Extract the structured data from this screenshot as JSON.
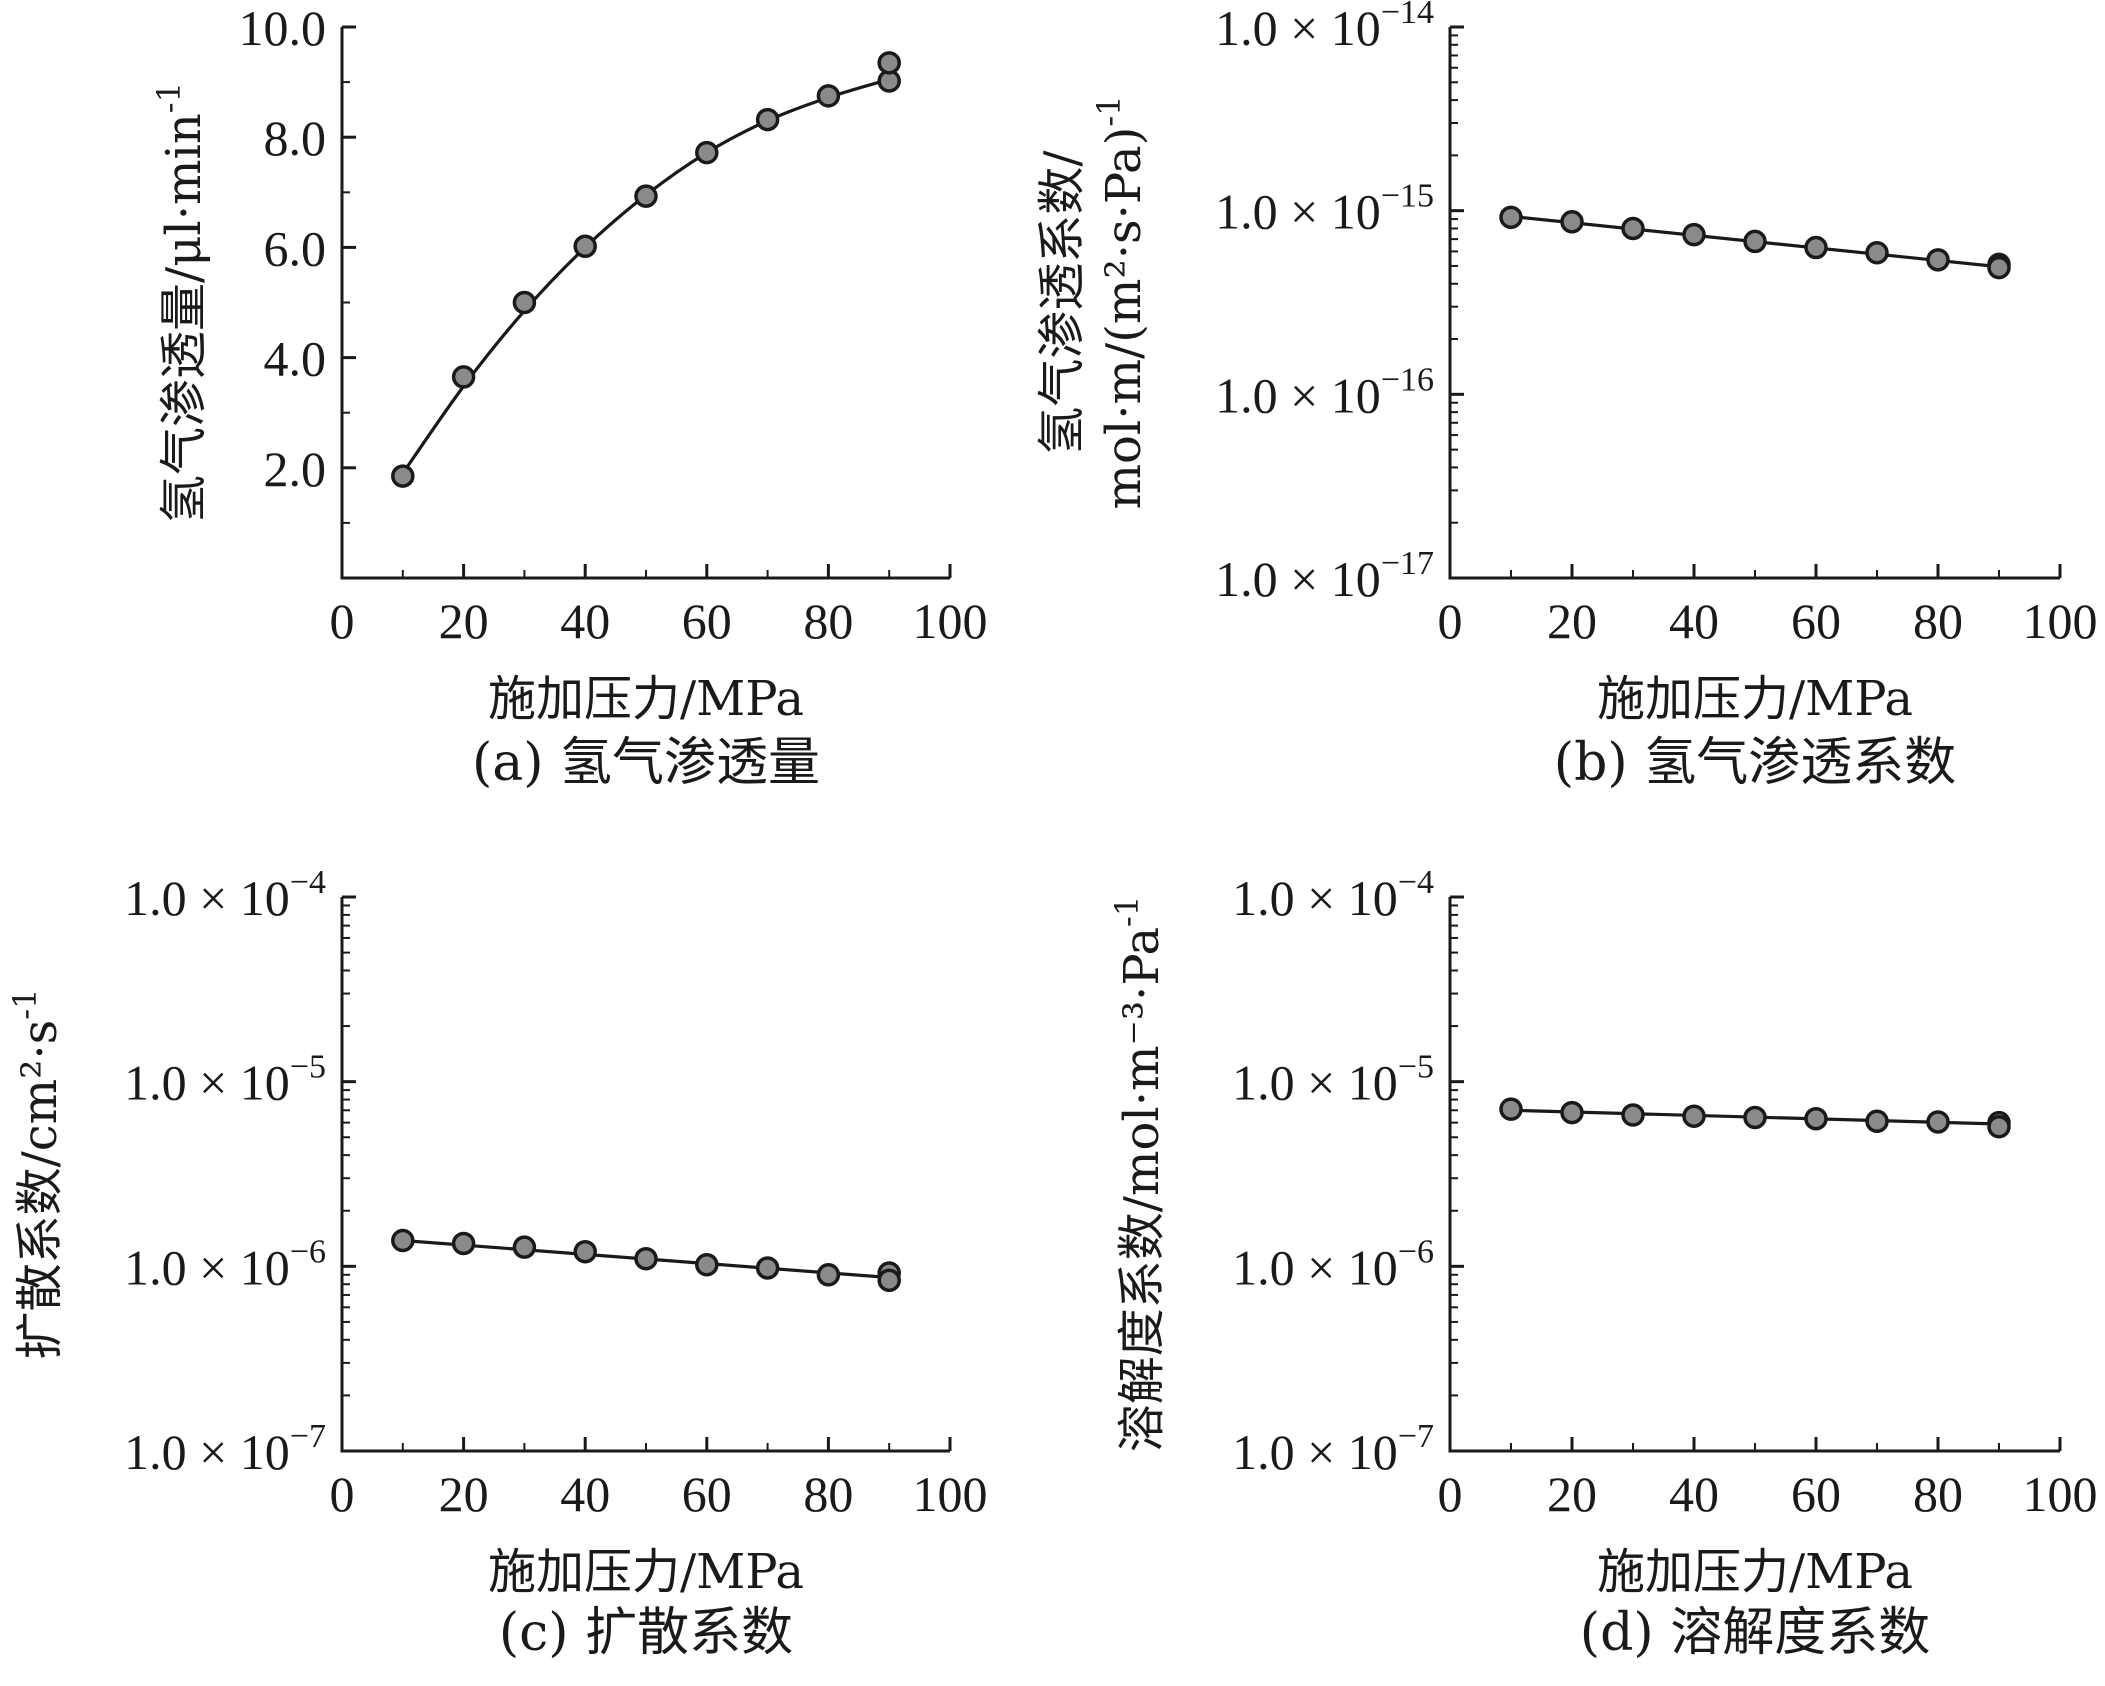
{
  "colors": {
    "marker_fill": "#8a8a8a",
    "line": "#1a1a1a",
    "background": "#ffffff"
  },
  "chart_data": [
    {
      "id": "a",
      "type": "scatter",
      "caption": "(a) 氢气渗透量",
      "xlabel": "施加压力/MPa",
      "ylabel": "氢气渗透量/μl·min",
      "ylabel_sup": "-1",
      "xlim": [
        0,
        100
      ],
      "ylim": [
        0,
        10
      ],
      "yscale": "linear",
      "xticks": [
        0,
        20,
        40,
        60,
        80,
        100
      ],
      "yticks": [
        2,
        4,
        6,
        8,
        10
      ],
      "ytick_labels": [
        "2.0",
        "4.0",
        "6.0",
        "8.0",
        "10.0"
      ],
      "grid": false,
      "series": [
        {
          "x": [
            10,
            20,
            30,
            40,
            50,
            60,
            70,
            80,
            90,
            90
          ],
          "y": [
            1.85,
            3.65,
            5.0,
            6.02,
            6.93,
            7.72,
            8.32,
            8.75,
            9.02,
            9.35
          ]
        }
      ],
      "fit": {
        "x": [
          10,
          20,
          30,
          40,
          50,
          60,
          70,
          80,
          90
        ],
        "y": [
          1.9,
          3.48,
          4.85,
          6.0,
          6.95,
          7.72,
          8.3,
          8.72,
          9.05
        ]
      }
    },
    {
      "id": "b",
      "type": "scatter",
      "caption": "(b) 氢气渗透系数",
      "xlabel": "施加压力/MPa",
      "ylabel_line1": "氢气渗透系数/",
      "ylabel_line2": "mol·m/(m²·s·Pa)",
      "ylabel_sup": "-1",
      "xlim": [
        0,
        100
      ],
      "ylim": [
        1e-17,
        1e-14
      ],
      "yscale": "log",
      "xticks": [
        0,
        20,
        40,
        60,
        80,
        100
      ],
      "yticks": [
        1e-17,
        1e-16,
        1e-15,
        1e-14
      ],
      "ytick_labels": [
        {
          "mant": "1.0 × 10",
          "exp": "−17"
        },
        {
          "mant": "1.0 × 10",
          "exp": "−16"
        },
        {
          "mant": "1.0 × 10",
          "exp": "−15"
        },
        {
          "mant": "1.0 × 10",
          "exp": "−14"
        }
      ],
      "grid": false,
      "series": [
        {
          "x": [
            10,
            20,
            30,
            40,
            50,
            60,
            70,
            80,
            90,
            90
          ],
          "y": [
            9.2e-16,
            8.7e-16,
            8e-16,
            7.4e-16,
            6.8e-16,
            6.3e-16,
            5.9e-16,
            5.4e-16,
            5.1e-16,
            4.9e-16
          ]
        }
      ],
      "fit": {
        "x": [
          10,
          90
        ],
        "y": [
          9.3e-16,
          4.95e-16
        ]
      }
    },
    {
      "id": "c",
      "type": "scatter",
      "caption": "(c) 扩散系数",
      "xlabel": "施加压力/MPa",
      "ylabel": "扩散系数/cm²·s",
      "ylabel_sup": "-1",
      "xlim": [
        0,
        100
      ],
      "ylim": [
        1e-07,
        0.0001
      ],
      "yscale": "log",
      "xticks": [
        0,
        20,
        40,
        60,
        80,
        100
      ],
      "yticks": [
        1e-07,
        1e-06,
        1e-05,
        0.0001
      ],
      "ytick_labels": [
        {
          "mant": "1.0 × 10",
          "exp": "−7"
        },
        {
          "mant": "1.0 × 10",
          "exp": "−6"
        },
        {
          "mant": "1.0 × 10",
          "exp": "−5"
        },
        {
          "mant": "1.0 × 10",
          "exp": "−4"
        }
      ],
      "grid": false,
      "series": [
        {
          "x": [
            10,
            20,
            30,
            40,
            50,
            60,
            70,
            80,
            90,
            90
          ],
          "y": [
            1.38e-06,
            1.33e-06,
            1.27e-06,
            1.2e-06,
            1.1e-06,
            1.02e-06,
            9.8e-07,
            9e-07,
            9.2e-07,
            8.4e-07
          ]
        }
      ],
      "fit": {
        "x": [
          10,
          90
        ],
        "y": [
          1.38e-06,
          8.7e-07
        ]
      }
    },
    {
      "id": "d",
      "type": "scatter",
      "caption": "(d) 溶解度系数",
      "xlabel": "施加压力/MPa",
      "ylabel": "溶解度系数/mol·m⁻³·Pa",
      "ylabel_sup": "-1",
      "xlim": [
        0,
        100
      ],
      "ylim": [
        1e-07,
        0.0001
      ],
      "yscale": "log",
      "xticks": [
        0,
        20,
        40,
        60,
        80,
        100
      ],
      "yticks": [
        1e-07,
        1e-06,
        1e-05,
        0.0001
      ],
      "ytick_labels": [
        {
          "mant": "1.0 × 10",
          "exp": "−7"
        },
        {
          "mant": "1.0 × 10",
          "exp": "−6"
        },
        {
          "mant": "1.0 × 10",
          "exp": "−5"
        },
        {
          "mant": "1.0 × 10",
          "exp": "−4"
        }
      ],
      "grid": false,
      "series": [
        {
          "x": [
            10,
            20,
            30,
            40,
            50,
            60,
            70,
            80,
            90,
            90
          ],
          "y": [
            7.1e-06,
            6.8e-06,
            6.6e-06,
            6.5e-06,
            6.4e-06,
            6.3e-06,
            6.1e-06,
            6.05e-06,
            6e-06,
            5.7e-06
          ]
        }
      ],
      "fit": {
        "x": [
          10,
          90
        ],
        "y": [
          7e-06,
          5.9e-06
        ]
      }
    }
  ]
}
